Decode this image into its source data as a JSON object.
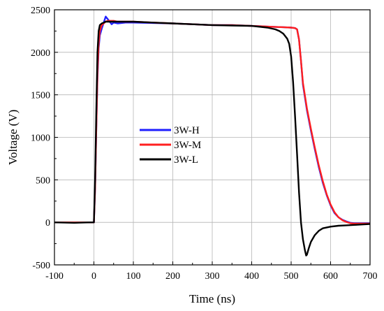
{
  "chart_data": {
    "type": "line",
    "xlabel": "Time (ns)",
    "ylabel": "Voltage (V)",
    "xlim": [
      -100,
      700
    ],
    "ylim": [
      -500,
      2500
    ],
    "xticks": [
      -100,
      0,
      100,
      200,
      300,
      400,
      500,
      600,
      700
    ],
    "yticks": [
      -500,
      0,
      500,
      1000,
      1500,
      2000,
      2500
    ],
    "grid": true,
    "legend_position": "center-left",
    "series": [
      {
        "name": "3W-H",
        "color": "#1f1fff",
        "x": [
          -100,
          -50,
          -10,
          0,
          3,
          6,
          9,
          12,
          15,
          20,
          25,
          30,
          35,
          40,
          45,
          50,
          60,
          80,
          100,
          150,
          200,
          250,
          300,
          350,
          400,
          450,
          480,
          500,
          510,
          515,
          520,
          525,
          530,
          540,
          550,
          560,
          570,
          580,
          590,
          600,
          610,
          620,
          630,
          640,
          650,
          660,
          680,
          700
        ],
        "y": [
          0,
          0,
          0,
          0,
          400,
          1100,
          1700,
          2050,
          2200,
          2280,
          2350,
          2420,
          2390,
          2360,
          2330,
          2350,
          2340,
          2350,
          2350,
          2345,
          2340,
          2330,
          2320,
          2320,
          2310,
          2300,
          2295,
          2290,
          2285,
          2270,
          2150,
          1900,
          1620,
          1320,
          1080,
          860,
          650,
          470,
          320,
          200,
          110,
          60,
          30,
          10,
          -5,
          -10,
          -10,
          -10
        ]
      },
      {
        "name": "3W-M",
        "color": "#ff1f1f",
        "x": [
          -100,
          -50,
          -10,
          0,
          3,
          6,
          9,
          12,
          15,
          20,
          25,
          30,
          35,
          40,
          50,
          60,
          80,
          100,
          150,
          200,
          250,
          300,
          350,
          400,
          450,
          480,
          500,
          510,
          515,
          520,
          525,
          530,
          540,
          550,
          560,
          570,
          580,
          590,
          600,
          610,
          620,
          630,
          640,
          650,
          660,
          680,
          700
        ],
        "y": [
          0,
          0,
          0,
          0,
          400,
          1100,
          1750,
          2100,
          2250,
          2320,
          2340,
          2360,
          2370,
          2370,
          2370,
          2360,
          2360,
          2360,
          2350,
          2340,
          2330,
          2320,
          2320,
          2310,
          2300,
          2295,
          2290,
          2285,
          2270,
          2150,
          1900,
          1640,
          1340,
          1100,
          880,
          670,
          490,
          330,
          210,
          120,
          60,
          25,
          5,
          -10,
          -15,
          -15,
          -15
        ]
      },
      {
        "name": "3W-L",
        "color": "#000000",
        "x": [
          -100,
          -50,
          -10,
          0,
          3,
          6,
          9,
          12,
          15,
          20,
          25,
          30,
          40,
          50,
          60,
          80,
          100,
          150,
          200,
          250,
          300,
          350,
          400,
          440,
          460,
          470,
          480,
          490,
          495,
          500,
          505,
          510,
          515,
          520,
          525,
          530,
          535,
          538,
          540,
          545,
          550,
          560,
          570,
          580,
          600,
          620,
          640,
          660,
          680,
          700
        ],
        "y": [
          0,
          -5,
          0,
          0,
          500,
          1300,
          2000,
          2250,
          2320,
          2340,
          2350,
          2360,
          2360,
          2360,
          2360,
          2360,
          2360,
          2350,
          2340,
          2330,
          2320,
          2315,
          2310,
          2290,
          2270,
          2250,
          2220,
          2160,
          2100,
          1950,
          1650,
          1250,
          800,
          350,
          0,
          -200,
          -330,
          -390,
          -380,
          -300,
          -230,
          -150,
          -100,
          -70,
          -50,
          -40,
          -35,
          -30,
          -25,
          -20
        ]
      }
    ]
  }
}
